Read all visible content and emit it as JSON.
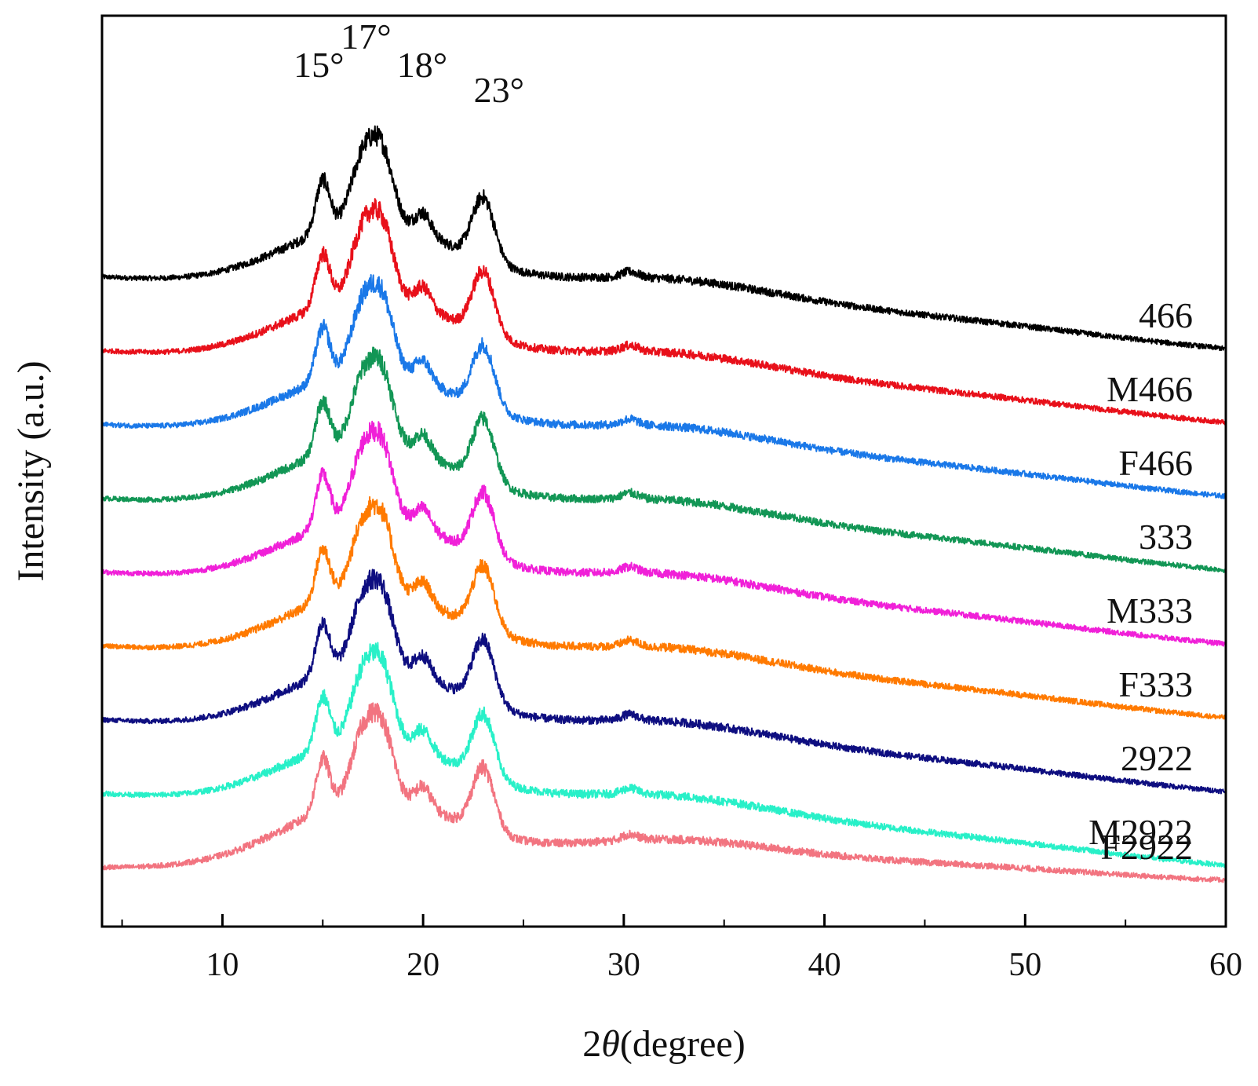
{
  "chart_data": {
    "type": "line",
    "title": "",
    "xlabel_prefix": "2",
    "xlabel_symbol": "θ",
    "xlabel_suffix": "(degree)",
    "ylabel": "Intensity (a.u.)",
    "xlim": [
      4,
      60
    ],
    "xticks": [
      10,
      20,
      30,
      40,
      50,
      60
    ],
    "xminor_ticks": [
      5,
      15,
      25,
      35,
      45,
      55
    ],
    "yticks_shown": false,
    "annotations": [
      {
        "text": "15°",
        "x": 15.0
      },
      {
        "text": "17°",
        "x": 17.0
      },
      {
        "text": "18°",
        "x": 18.0
      },
      {
        "text": "23°",
        "x": 23.0
      }
    ],
    "peak_positions_deg": [
      15.0,
      17.0,
      18.0,
      23.0
    ],
    "series": [
      {
        "name": "466",
        "color": "#000000",
        "baseline_start": 8.0,
        "baseline_end": 7.0,
        "peak_height": 7.8
      },
      {
        "name": "M466",
        "color": "#e8101a",
        "baseline_start": 7.0,
        "baseline_end": 6.0,
        "peak_height": 7.6
      },
      {
        "name": "F466",
        "color": "#1a78e8",
        "baseline_start": 6.0,
        "baseline_end": 5.0,
        "peak_height": 7.6
      },
      {
        "name": "333",
        "color": "#129655",
        "baseline_start": 5.0,
        "baseline_end": 4.0,
        "peak_height": 7.6
      },
      {
        "name": "M333",
        "color": "#f020d8",
        "baseline_start": 4.0,
        "baseline_end": 3.0,
        "peak_height": 7.6
      },
      {
        "name": "F333",
        "color": "#ff7a00",
        "baseline_start": 3.0,
        "baseline_end": 2.0,
        "peak_height": 7.6
      },
      {
        "name": "2922",
        "color": "#0e0e80",
        "baseline_start": 2.0,
        "baseline_end": 1.0,
        "peak_height": 7.6
      },
      {
        "name": "M2922",
        "color": "#28f0c8",
        "baseline_start": 1.0,
        "baseline_end": 0.0,
        "peak_height": 7.6
      },
      {
        "name": "F2922",
        "color": "#f27480",
        "baseline_start": 0.0,
        "baseline_end": -0.2,
        "peak_height": 7.6
      }
    ]
  }
}
